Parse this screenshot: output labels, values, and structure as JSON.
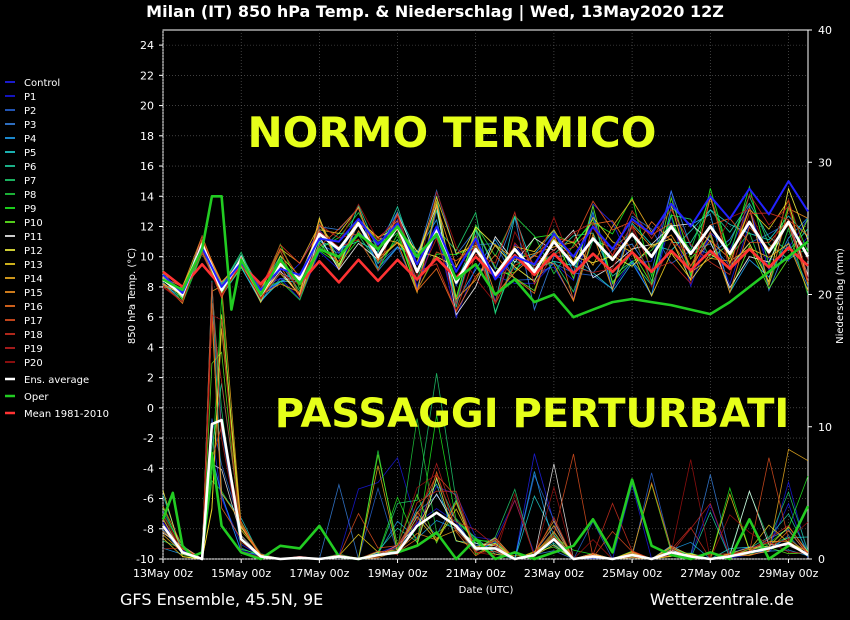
{
  "title": "Milan  (IT)  850 hPa Temp. & Niederschlag | Wed, 13May2020 12Z",
  "footer_left": "GFS Ensemble, 45.5N, 9E",
  "footer_right": "Wetterzentrale.de",
  "overlay_top": "NORMO TERMICO",
  "overlay_bottom": "PASSAGGI PERTURBATI",
  "chart_data": {
    "type": "line",
    "xlabel": "Date (UTC)",
    "ylabel": "850 hPa Temp. (°C)",
    "y2label": "Niederschlag (mm)",
    "ylim": [
      -10,
      25
    ],
    "y2lim": [
      0,
      40
    ],
    "yticks": [
      -10,
      -8,
      -6,
      -4,
      -2,
      0,
      2,
      4,
      6,
      8,
      10,
      12,
      14,
      16,
      18,
      20,
      22,
      24
    ],
    "y2ticks": [
      0,
      10,
      20,
      30,
      40
    ],
    "xlim": [
      0,
      16.5
    ],
    "xticks": [
      {
        "label": "13May 00z",
        "day": 0
      },
      {
        "label": "15May 00z",
        "day": 2
      },
      {
        "label": "17May 00z",
        "day": 4
      },
      {
        "label": "19May 00z",
        "day": 6
      },
      {
        "label": "21May 00z",
        "day": 8
      },
      {
        "label": "23May 00z",
        "day": 10
      },
      {
        "label": "25May 00z",
        "day": 12
      },
      {
        "label": "27May 00z",
        "day": 14
      },
      {
        "label": "29May 00z",
        "day": 16
      }
    ],
    "grid": true,
    "legend": [
      {
        "name": "Control",
        "color": "#2222ff"
      },
      {
        "name": "P1",
        "color": "#1a1aee"
      },
      {
        "name": "P2",
        "color": "#2a6adf"
      },
      {
        "name": "P3",
        "color": "#3a8aef"
      },
      {
        "name": "P4",
        "color": "#22aaff"
      },
      {
        "name": "P5",
        "color": "#22dddd"
      },
      {
        "name": "P6",
        "color": "#22ddaa"
      },
      {
        "name": "P7",
        "color": "#22dd77"
      },
      {
        "name": "P8",
        "color": "#22dd44"
      },
      {
        "name": "P9",
        "color": "#22ff22"
      },
      {
        "name": "P10",
        "color": "#66ff22"
      },
      {
        "name": "P11",
        "color": "#ffffff"
      },
      {
        "name": "P12",
        "color": "#ffff44"
      },
      {
        "name": "P13",
        "color": "#ffdd22"
      },
      {
        "name": "P14",
        "color": "#ffbb22"
      },
      {
        "name": "P15",
        "color": "#ff9922"
      },
      {
        "name": "P16",
        "color": "#ff7722"
      },
      {
        "name": "P17",
        "color": "#ee5522"
      },
      {
        "name": "P18",
        "color": "#dd3322"
      },
      {
        "name": "P19",
        "color": "#cc2222"
      },
      {
        "name": "P20",
        "color": "#aa1111"
      },
      {
        "name": "Ens. average",
        "color": "#ffffff"
      },
      {
        "name": "Oper",
        "color": "#22cc22"
      },
      {
        "name": "Mean 1981-2010",
        "color": "#ff3333"
      }
    ],
    "series": [
      {
        "name": "Mean 1981-2010",
        "unit": "°C",
        "x": [
          0,
          0.5,
          1,
          1.5,
          2,
          2.5,
          3,
          3.5,
          4,
          4.5,
          5,
          5.5,
          6,
          6.5,
          7,
          7.5,
          8,
          8.5,
          9,
          9.5,
          10,
          10.5,
          11,
          11.5,
          12,
          12.5,
          13,
          13.5,
          14,
          14.5,
          15,
          15.5,
          16,
          16.5
        ],
        "y": [
          9.0,
          8.0,
          9.5,
          8.0,
          9.5,
          8.2,
          9.6,
          8.2,
          9.7,
          8.3,
          9.8,
          8.4,
          9.8,
          8.5,
          9.9,
          8.6,
          10.0,
          8.7,
          10.1,
          8.8,
          10.2,
          8.9,
          10.2,
          9.0,
          10.3,
          9.0,
          10.4,
          9.1,
          10.4,
          9.2,
          10.5,
          9.3,
          10.6,
          9.4
        ]
      },
      {
        "name": "Ens. average",
        "unit": "°C",
        "x": [
          0,
          0.5,
          1,
          1.5,
          2,
          2.5,
          3,
          3.5,
          4,
          4.5,
          5,
          5.5,
          6,
          6.5,
          7,
          7.5,
          8,
          8.5,
          9,
          9.5,
          10,
          10.5,
          11,
          11.5,
          12,
          12.5,
          13,
          13.5,
          14,
          14.5,
          15,
          15.5,
          16,
          16.5
        ],
        "y": [
          8.5,
          7.5,
          10.8,
          7.8,
          9.8,
          7.5,
          9.5,
          8.5,
          11.5,
          10.5,
          12.2,
          10.0,
          12.0,
          9.0,
          11.8,
          8.3,
          10.5,
          8.8,
          10.5,
          9.0,
          11.0,
          9.5,
          11.2,
          9.8,
          11.5,
          10.0,
          12.0,
          10.2,
          12.0,
          10.2,
          12.3,
          10.3,
          12.3,
          10.0
        ]
      },
      {
        "name": "Control",
        "unit": "°C",
        "x": [
          0,
          0.5,
          1,
          1.5,
          2,
          2.5,
          3,
          3.5,
          4,
          4.5,
          5,
          5.5,
          6,
          6.5,
          7,
          7.5,
          8,
          8.5,
          9,
          9.5,
          10,
          10.5,
          11,
          11.5,
          12,
          12.5,
          13,
          13.5,
          14,
          14.5,
          15,
          15.5,
          16,
          16.5
        ],
        "y": [
          8.8,
          7.6,
          10.6,
          8.0,
          9.6,
          7.8,
          9.2,
          8.8,
          11.2,
          11.0,
          12.5,
          10.8,
          12.2,
          9.5,
          12.0,
          9.0,
          11.2,
          8.5,
          10.0,
          9.5,
          11.5,
          10.0,
          12.0,
          10.5,
          12.5,
          11.5,
          13.5,
          12.0,
          14.0,
          12.5,
          14.5,
          12.8,
          15.0,
          13.0
        ]
      },
      {
        "name": "Oper",
        "unit": "°C",
        "x": [
          0,
          0.5,
          1,
          1.25,
          1.5,
          1.75,
          2,
          2.5,
          3,
          3.5,
          4,
          4.5,
          5,
          5.5,
          6,
          6.5,
          7,
          7.5,
          8,
          8.5,
          9,
          9.5,
          10,
          10.5,
          11,
          11.5,
          12,
          12.5,
          13,
          13.5,
          14,
          14.5,
          15,
          15.5,
          16,
          16.5
        ],
        "y": [
          8.5,
          7.8,
          10.5,
          14.0,
          14.0,
          6.5,
          9.8,
          7.5,
          9.8,
          8.2,
          10.5,
          10.0,
          11.5,
          10.5,
          12.0,
          10.0,
          11.5,
          8.5,
          9.5,
          7.5,
          8.5,
          7.0,
          7.5,
          6.0,
          6.5,
          7.0,
          7.2,
          7.0,
          6.8,
          6.5,
          6.2,
          7.0,
          8.0,
          9.0,
          10.0,
          11.0
        ]
      },
      {
        "name": "Oper precipitation",
        "unit": "mm",
        "x": [
          0,
          0.25,
          0.5,
          0.75,
          1,
          1.25,
          1.5,
          2,
          2.5,
          3,
          3.5,
          4,
          4.5,
          5,
          5.5,
          6,
          6.5,
          7,
          7.5,
          8,
          8.5,
          9,
          9.5,
          10,
          10.5,
          11,
          11.5,
          12,
          12.5,
          13,
          13.5,
          14,
          14.5,
          15,
          15.5,
          16,
          16.5
        ],
        "y": [
          3.0,
          5.0,
          1.0,
          0.2,
          0.5,
          8.0,
          2.5,
          0.5,
          0.0,
          1.0,
          0.8,
          2.5,
          0.2,
          0.0,
          0.3,
          0.5,
          1.0,
          2.0,
          0.0,
          1.5,
          0.0,
          0.5,
          0.0,
          0.5,
          1.0,
          3.0,
          0.5,
          6.0,
          1.0,
          0.3,
          0.0,
          0.5,
          0.0,
          3.0,
          0.0,
          1.0,
          4.0
        ]
      },
      {
        "name": "Ens. average precipitation",
        "unit": "mm",
        "x": [
          0,
          0.5,
          1,
          1.25,
          1.5,
          2,
          2.5,
          3,
          3.5,
          4,
          4.5,
          5,
          5.5,
          6,
          6.5,
          7,
          7.5,
          8,
          8.5,
          9,
          9.5,
          10,
          10.5,
          11,
          11.5,
          12,
          12.5,
          13,
          13.5,
          14,
          14.5,
          15,
          15.5,
          16,
          16.5
        ],
        "y": [
          2.5,
          0.5,
          0.0,
          10.2,
          10.5,
          1.5,
          0.2,
          0.0,
          0.1,
          0.0,
          0.2,
          0.0,
          0.3,
          0.5,
          2.5,
          3.5,
          2.5,
          0.8,
          0.8,
          0.0,
          0.3,
          1.5,
          0.0,
          0.2,
          0.0,
          0.3,
          0.0,
          0.5,
          0.2,
          0.0,
          0.2,
          0.5,
          0.8,
          1.2,
          0.3
        ]
      }
    ]
  }
}
